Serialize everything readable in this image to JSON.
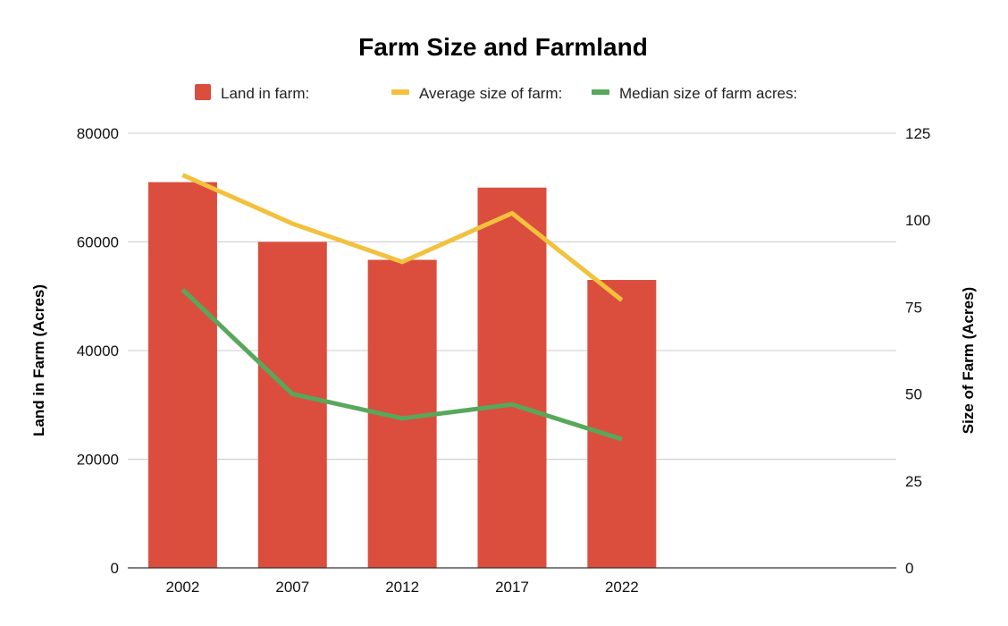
{
  "chart_data": {
    "type": "bar",
    "title": "Farm Size and Farmland",
    "categories": [
      "2002",
      "2007",
      "2012",
      "2017",
      "2022"
    ],
    "x_extra_slots": 2,
    "left_axis": {
      "label": "Land in Farm (Acres)",
      "range": [
        0,
        80000
      ],
      "ticks": [
        "0",
        "20000",
        "40000",
        "60000",
        "80000"
      ]
    },
    "right_axis": {
      "label": "Size of Farm (Acres)",
      "range": [
        0,
        125
      ],
      "ticks": [
        "0",
        "25",
        "50",
        "75",
        "100",
        "125"
      ]
    },
    "grid": true,
    "legend_position": "top",
    "series": [
      {
        "name": "Land in farm:",
        "type": "bar",
        "axis": "left",
        "color": "#db4e3e",
        "values": [
          71000,
          60000,
          56700,
          70000,
          53000
        ]
      },
      {
        "name": "Average size of farm:",
        "type": "line",
        "axis": "right",
        "color": "#f2c13d",
        "values": [
          113,
          99,
          88,
          102,
          77
        ]
      },
      {
        "name": "Median size of farm acres:",
        "type": "line",
        "axis": "right",
        "color": "#57a85a",
        "values": [
          80,
          50,
          43,
          47,
          37
        ]
      }
    ]
  }
}
